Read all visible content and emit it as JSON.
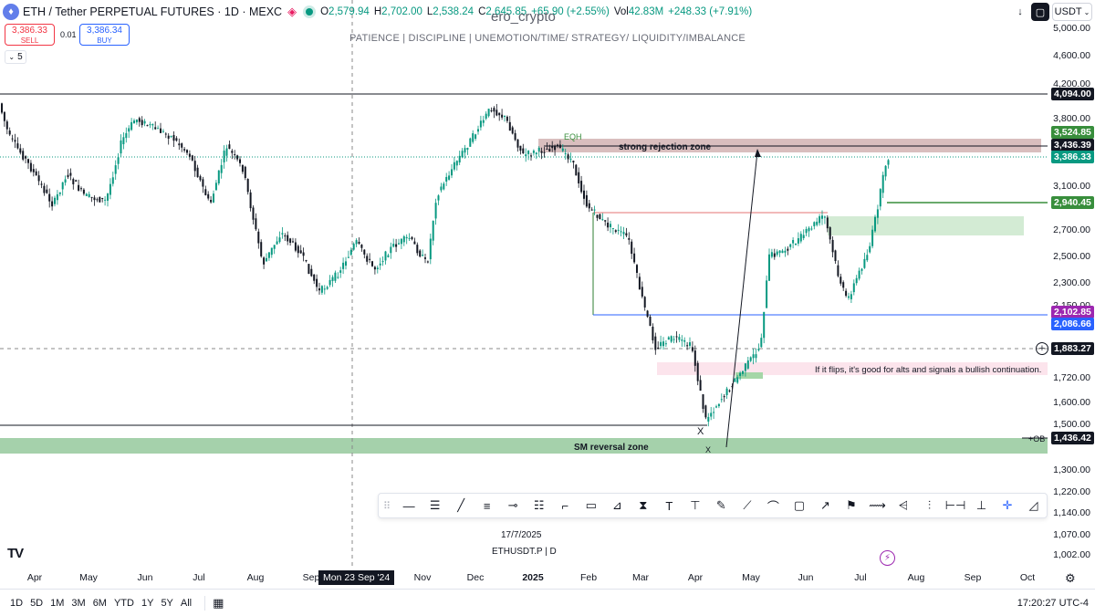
{
  "header": {
    "symbol_title": "ETH / Tether PERPETUAL FUTURES · 1D · MEXC",
    "ohlc": [
      {
        "k": "O",
        "v": "2,579.94"
      },
      {
        "k": "H",
        "v": "2,702.00"
      },
      {
        "k": "L",
        "v": "2,538.24"
      },
      {
        "k": "C",
        "v": "2,645.85"
      },
      {
        "k": "",
        "v": "+65.90 (+2.55%)"
      },
      {
        "k": "Vol",
        "v": "42.83M"
      },
      {
        "k": "",
        "v": "+248.33 (+7.91%)"
      }
    ],
    "currency": "USDT"
  },
  "trade": {
    "sell_price": "3,386.33",
    "sell_label": "SELL",
    "spread": "0.01",
    "buy_price": "3,386.34",
    "buy_label": "BUY",
    "indicator_count": "5"
  },
  "watermark": {
    "name": "ero_crypto",
    "subtitle": "PATIENCE  |  DISCIPLINE  |  UNEMOTION/TIME/ STRATEGY/ LIQUIDITY/IMBALANCE"
  },
  "annotations": {
    "eqh": "EQH",
    "rejection": "strong rejection zone",
    "flip": "If it flips, it's good for alts and signals a bullish continuation.",
    "reversal": "SM reversal zone",
    "ob": "+OB",
    "x1": "X",
    "x2": "X"
  },
  "price_axis": {
    "ticks": [
      "5,000.00",
      "4,600.00",
      "4,200.00",
      "3,800.00",
      "3,100.00",
      "2,700.00",
      "2,500.00",
      "2,300.00",
      "2,150.00",
      "1,720.00",
      "1,600.00",
      "1,500.00",
      "1,300.00",
      "1,220.00",
      "1,140.00",
      "1,070.00",
      "1,002.00"
    ],
    "labels": [
      {
        "text": "4,094.00",
        "color": "#131722"
      },
      {
        "text": "3,524.85",
        "color": "#388e3c"
      },
      {
        "text": "3,436.39",
        "color": "#131722"
      },
      {
        "text": "3,386.33",
        "color": "#089981"
      },
      {
        "text": "2,940.45",
        "color": "#388e3c"
      },
      {
        "text": "2,102.85",
        "color": "#9c27b0"
      },
      {
        "text": "2,086.66",
        "color": "#2962ff"
      },
      {
        "text": "1,883.27",
        "color": "#131722"
      },
      {
        "text": "1,436.42",
        "color": "#131722"
      }
    ]
  },
  "time_axis": {
    "months": [
      "Apr",
      "May",
      "Jun",
      "Jul",
      "Aug",
      "Sep",
      "Nov",
      "Dec",
      "2025",
      "Feb",
      "Mar",
      "Apr",
      "May",
      "Jun",
      "Jul",
      "Aug",
      "Sep",
      "Oct"
    ],
    "crosshair_date": "Mon 23 Sep '24"
  },
  "footer": {
    "date": "17/7/2025",
    "symbol": "ETHUSDT.P  |  D",
    "ranges": [
      "1D",
      "5D",
      "1M",
      "3M",
      "6M",
      "YTD",
      "1Y",
      "5Y",
      "All"
    ],
    "clock": "17:20:27 UTC-4"
  },
  "colors": {
    "up": "#089981",
    "down": "#131722",
    "accent": "#2962ff"
  }
}
